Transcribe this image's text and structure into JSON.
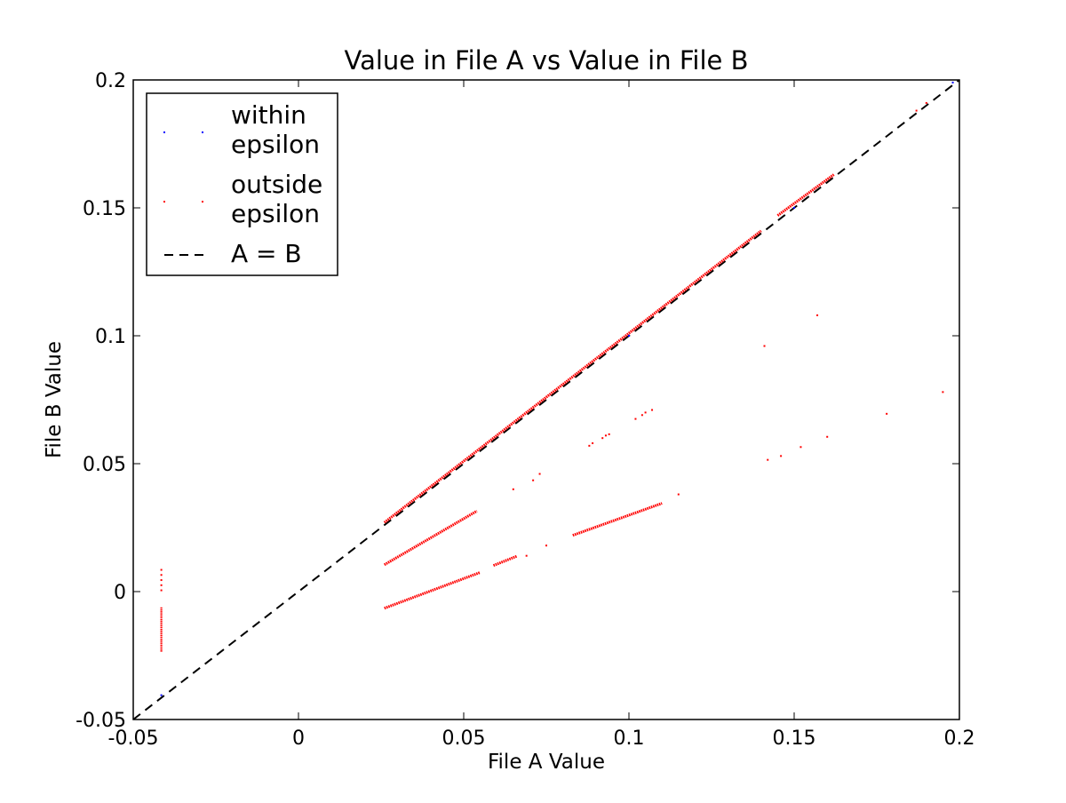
{
  "chart_data": {
    "type": "scatter",
    "title": "Value in File A vs Value in File B",
    "xlabel": "File A Value",
    "ylabel": "File B Value",
    "xlim": [
      -0.05,
      0.2
    ],
    "ylim": [
      -0.05,
      0.2
    ],
    "xticks": [
      -0.05,
      0,
      0.05,
      0.1,
      0.15,
      0.2
    ],
    "xtick_labels": [
      "-0.05",
      "0",
      "0.05",
      "0.1",
      "0.15",
      "0.2"
    ],
    "yticks": [
      -0.05,
      0,
      0.05,
      0.1,
      0.15,
      0.2
    ],
    "ytick_labels": [
      "-0.05",
      "0",
      "0.05",
      "0.1",
      "0.15",
      "0.2"
    ],
    "grid": false,
    "legend_position": "top-left",
    "series": [
      {
        "name": "within epsilon",
        "color": "#0000ff",
        "marker": "point",
        "points": [
          [
            -0.0415,
            -0.0405
          ],
          [
            0.1,
            0.1
          ],
          [
            0.15,
            0.15
          ],
          [
            0.198,
            0.199
          ]
        ]
      },
      {
        "name": "outside epsilon",
        "color": "#ff0000",
        "marker": "point",
        "segments": [
          {
            "from": [
              0.026,
              0.027
            ],
            "to": [
              0.14,
              0.141
            ]
          },
          {
            "from": [
              0.145,
              0.147
            ],
            "to": [
              0.162,
              0.163
            ]
          },
          {
            "from": [
              0.026,
              0.0105
            ],
            "to": [
              0.054,
              0.0315
            ]
          },
          {
            "from": [
              0.026,
              -0.0065
            ],
            "to": [
              0.055,
              0.0075
            ]
          },
          {
            "from": [
              0.059,
              0.0102
            ],
            "to": [
              0.066,
              0.0138
            ]
          },
          {
            "from": [
              0.083,
              0.022
            ],
            "to": [
              0.11,
              0.0345
            ]
          }
        ],
        "vertical_cluster": {
          "x": -0.0415,
          "y_from": -0.0235,
          "y_to": -0.006
        },
        "points": [
          [
            -0.0415,
            0.0085
          ],
          [
            -0.0415,
            0.0065
          ],
          [
            -0.0415,
            0.0045
          ],
          [
            -0.0415,
            0.0025
          ],
          [
            -0.0415,
            0.0005
          ],
          [
            0.065,
            0.04
          ],
          [
            0.071,
            0.0435
          ],
          [
            0.073,
            0.046
          ],
          [
            0.069,
            0.014
          ],
          [
            0.075,
            0.018
          ],
          [
            0.088,
            0.057
          ],
          [
            0.089,
            0.058
          ],
          [
            0.092,
            0.06
          ],
          [
            0.093,
            0.061
          ],
          [
            0.094,
            0.0615
          ],
          [
            0.102,
            0.0675
          ],
          [
            0.104,
            0.069
          ],
          [
            0.105,
            0.07
          ],
          [
            0.107,
            0.071
          ],
          [
            0.115,
            0.038
          ],
          [
            0.141,
            0.096
          ],
          [
            0.142,
            0.0515
          ],
          [
            0.146,
            0.053
          ],
          [
            0.152,
            0.0565
          ],
          [
            0.157,
            0.108
          ],
          [
            0.16,
            0.0605
          ],
          [
            0.178,
            0.0695
          ],
          [
            0.195,
            0.078
          ],
          [
            0.187,
            0.188
          ],
          [
            0.19,
            0.191
          ]
        ]
      },
      {
        "name": "A = B",
        "color": "#000000",
        "line_style": "dashed",
        "x": [
          -0.05,
          0.2
        ],
        "y": [
          -0.05,
          0.2
        ]
      }
    ],
    "legend": [
      {
        "label_lines": [
          "within",
          "epsilon"
        ],
        "color": "#0000ff",
        "marker": "point"
      },
      {
        "label_lines": [
          "outside",
          "epsilon"
        ],
        "color": "#ff0000",
        "marker": "point"
      },
      {
        "label_lines": [
          "A = B"
        ],
        "color": "#000000",
        "marker": "dashed-line"
      }
    ]
  }
}
